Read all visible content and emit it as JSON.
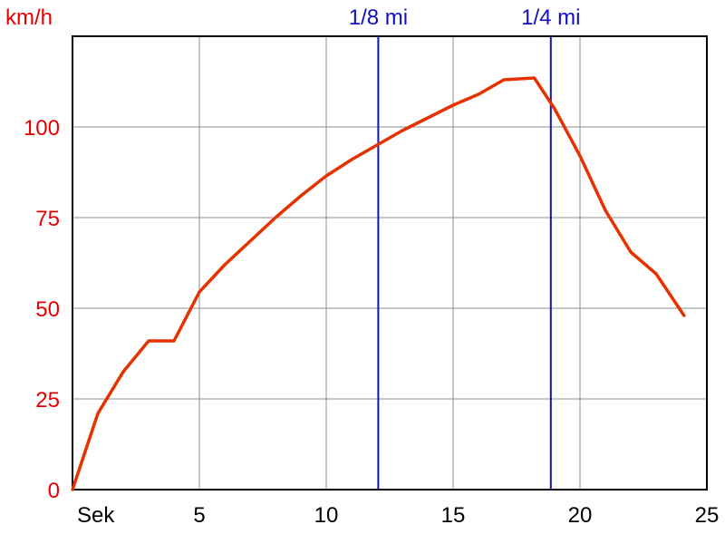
{
  "chart_data": {
    "type": "line",
    "ylabel": "km/h",
    "xlabel": "Sek",
    "xlim": [
      0,
      25
    ],
    "ylim": [
      0,
      125
    ],
    "grid": true,
    "x_ticks": [
      5,
      10,
      15,
      20,
      25
    ],
    "y_ticks": [
      0,
      25,
      50,
      75,
      100
    ],
    "series": [
      {
        "color": "#e63200",
        "x": [
          0,
          1,
          2,
          3,
          4,
          5,
          6,
          7,
          8,
          9,
          10,
          11,
          12,
          13,
          14,
          15,
          16,
          17,
          18.2,
          19,
          20,
          21,
          22,
          23,
          24.1
        ],
        "y": [
          0,
          21,
          32.5,
          41,
          41,
          54.5,
          62,
          68.5,
          75,
          81,
          86.5,
          91,
          95,
          99,
          102.5,
          106,
          109,
          113,
          113.5,
          105,
          92,
          77,
          65.5,
          59.5,
          48
        ]
      }
    ],
    "markers": [
      {
        "label": "1/8 mi",
        "x": 12.05
      },
      {
        "label": "1/4 mi",
        "x": 18.85
      }
    ],
    "colors": {
      "axis_label": "#e60000",
      "marker": "#1010c0",
      "line": "#e63200",
      "grid": "#8c8c8c"
    }
  }
}
